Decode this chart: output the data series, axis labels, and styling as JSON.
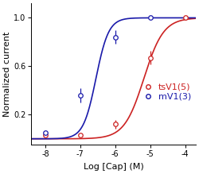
{
  "title": "",
  "xlabel": "Log [Cap] (M)",
  "ylabel": "Normalized current",
  "xlim": [
    -8.4,
    -3.7
  ],
  "ylim": [
    -0.05,
    1.12
  ],
  "xticks": [
    -8,
    -7,
    -6,
    -5,
    -4
  ],
  "yticks": [
    0.2,
    0.6,
    1.0
  ],
  "tsV1_color": "#cc2222",
  "mV1_color": "#1a1aaa",
  "tsV1_points_x": [
    -8,
    -7,
    -6,
    -5,
    -4
  ],
  "tsV1_points_y": [
    0.03,
    0.03,
    0.12,
    0.67,
    1.005
  ],
  "tsV1_errors": [
    0.012,
    0.008,
    0.038,
    0.055,
    0.008
  ],
  "tsV1_ec50_log": -5.18,
  "tsV1_hill": 1.55,
  "mV1_points_x": [
    -8,
    -7,
    -6,
    -5
  ],
  "mV1_points_y": [
    0.05,
    0.36,
    0.84,
    1.005
  ],
  "mV1_errors": [
    0.012,
    0.06,
    0.055,
    0.012
  ],
  "mV1_ec50_log": -6.55,
  "mV1_hill": 2.4,
  "legend_tsV1": "tsV1(5)",
  "legend_mV1": "mV1(3)",
  "bg_color": "#ffffff",
  "tick_fontsize": 7,
  "label_fontsize": 8,
  "legend_fontsize": 8
}
